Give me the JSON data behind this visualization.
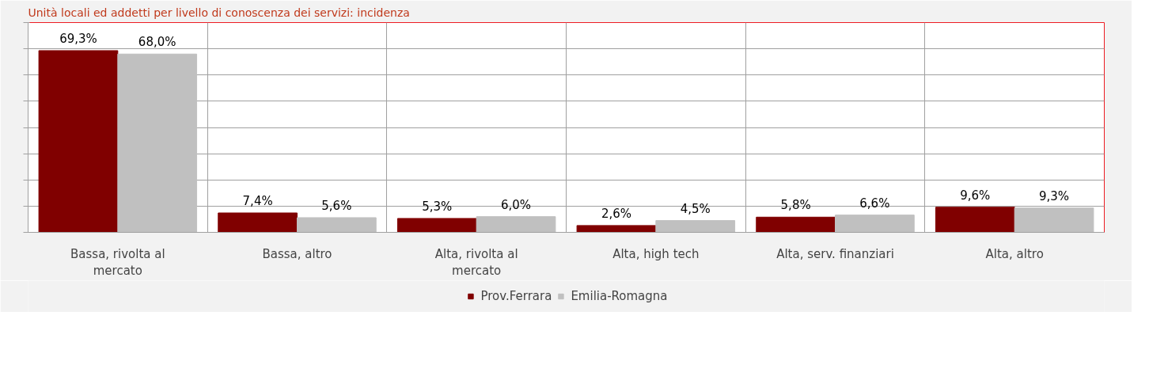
{
  "chart_data": {
    "type": "bar",
    "title": "Unità locali ed addetti per livello di conoscenza dei servizi: incidenza",
    "categories": [
      "Bassa, rivolta al mercato",
      "Bassa, altro",
      "Alta, rivolta al mercato",
      "Alta, high tech",
      "Alta, serv. finanziari",
      "Alta, altro"
    ],
    "series": [
      {
        "name": "Prov.Ferrara",
        "color": "#800000",
        "values": [
          69.3,
          7.4,
          5.3,
          2.6,
          5.8,
          9.6
        ],
        "value_labels": [
          "69,3%",
          "7,4%",
          "5,3%",
          "2,6%",
          "5,8%",
          "9,6%"
        ]
      },
      {
        "name": "Emilia-Romagna",
        "color": "#c0c0c0",
        "values": [
          68.0,
          5.6,
          6.0,
          4.5,
          6.6,
          9.3
        ],
        "value_labels": [
          "68,0%",
          "5,6%",
          "6,0%",
          "4,5%",
          "6,6%",
          "9,3%"
        ]
      }
    ],
    "ylim": [
      0,
      80
    ],
    "yticks": [
      0,
      10,
      20,
      30,
      40,
      50,
      60,
      70,
      80
    ],
    "tick_labels": "x",
    "grid": true,
    "legend": "bottom"
  }
}
